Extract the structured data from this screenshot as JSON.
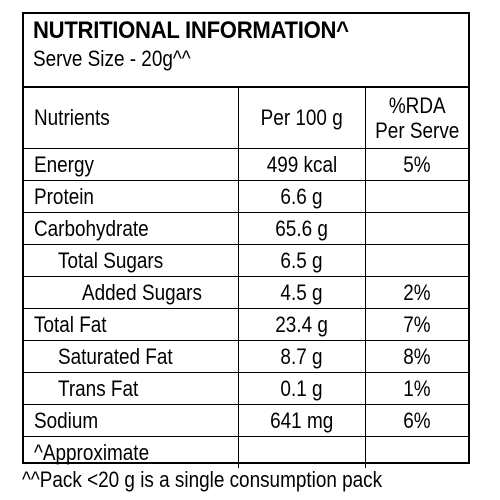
{
  "panel": {
    "title": "NUTRITIONAL INFORMATION^",
    "serve_size": "Serve Size - 20g^^"
  },
  "table": {
    "headers": {
      "nutrients": "Nutrients",
      "per100": "Per 100 g",
      "rda_line1": "%RDA",
      "rda_line2": "Per Serve"
    },
    "rows": [
      {
        "name": "Energy",
        "per100": "499 kcal",
        "rda": "5%"
      },
      {
        "name": "Protein",
        "per100": "6.6 g",
        "rda": ""
      },
      {
        "name": "Carbohydrate",
        "per100": "65.6 g",
        "rda": ""
      },
      {
        "name": "Total Sugars",
        "per100": "6.5 g",
        "rda": ""
      },
      {
        "name": "Added Sugars",
        "per100": "4.5 g",
        "rda": "2%"
      },
      {
        "name": "Total Fat",
        "per100": "23.4 g",
        "rda": "7%"
      },
      {
        "name": "Saturated Fat",
        "per100": "8.7 g",
        "rda": "8%"
      },
      {
        "name": "Trans Fat",
        "per100": "0.1 g",
        "rda": "1%"
      },
      {
        "name": "Sodium",
        "per100": "641 mg",
        "rda": "6%"
      },
      {
        "name": "^Approximate",
        "per100": "",
        "rda": ""
      }
    ]
  },
  "footnote": "^^Pack <20 g is a single consumption pack"
}
